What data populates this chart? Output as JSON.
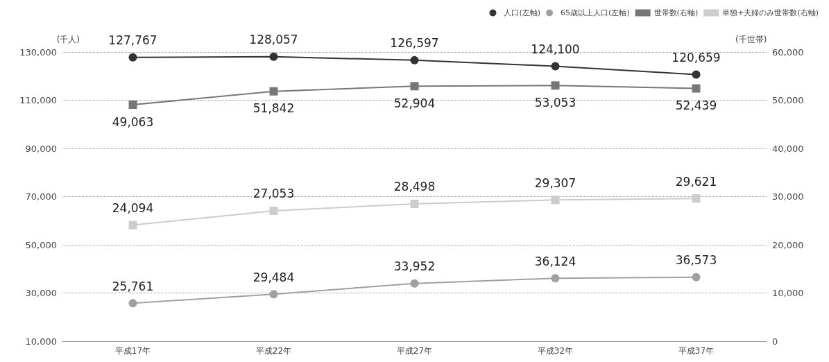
{
  "chart_data": {
    "type": "line",
    "categories": [
      "平成17年",
      "平成22年",
      "平成27年",
      "平成32年",
      "平成37年"
    ],
    "ylabel": "(千人)",
    "y2label": "(千世帯)",
    "ylim": [
      10000,
      130000
    ],
    "yticks": [
      {
        "value": 10000,
        "label": "10,000"
      },
      {
        "value": 30000,
        "label": "30,000"
      },
      {
        "value": 50000,
        "label": "50,000"
      },
      {
        "value": 70000,
        "label": "70,000"
      },
      {
        "value": 90000,
        "label": "90,000"
      },
      {
        "value": 110000,
        "label": "110,000"
      },
      {
        "value": 130000,
        "label": "130,000"
      }
    ],
    "y2lim": [
      0,
      60000
    ],
    "y2ticks": [
      0,
      {
        "value": 10000,
        "label": "10,000"
      },
      {
        "value": 20000,
        "label": "20,000"
      },
      {
        "value": 30000,
        "label": "30,000"
      },
      {
        "value": 40000,
        "label": "40,000"
      },
      {
        "value": 50000,
        "label": "50,000"
      },
      {
        "value": 60000,
        "label": "60,000"
      }
    ],
    "grid": "y",
    "legend": "top right",
    "series": [
      {
        "name": "人口(左軸)",
        "color": "#333333",
        "marker": "circle",
        "values": [
          127767,
          128057,
          126597,
          124100,
          120659
        ],
        "value_labels": [
          "127,767",
          "128,057",
          "126,597",
          "124,100",
          "120,659"
        ]
      },
      {
        "name": "65歳以上人口(左軸)",
        "color": "#a0a0a0",
        "marker": "circle",
        "values": [
          25761,
          29484,
          33952,
          36124,
          36573
        ],
        "value_labels": [
          "25,761",
          "29,484",
          "33,952",
          "36,124",
          "36,573"
        ]
      },
      {
        "name": "世帯数(右軸)",
        "color": "#777777",
        "marker": "square",
        "axis": "y2",
        "values": [
          49063,
          51842,
          52904,
          53053,
          52439
        ],
        "value_labels": [
          "49,063",
          "51,842",
          "52,904",
          "53,053",
          "52,439"
        ]
      },
      {
        "name": "単独+夫婦のみ世帯数(右軸)",
        "color": "#cccccc",
        "marker": "square",
        "axis": "y2",
        "values": [
          24094,
          27053,
          28498,
          29307,
          29621
        ],
        "value_labels": [
          "24,094",
          "27,053",
          "28,498",
          "29,307",
          "29,621"
        ]
      }
    ]
  }
}
